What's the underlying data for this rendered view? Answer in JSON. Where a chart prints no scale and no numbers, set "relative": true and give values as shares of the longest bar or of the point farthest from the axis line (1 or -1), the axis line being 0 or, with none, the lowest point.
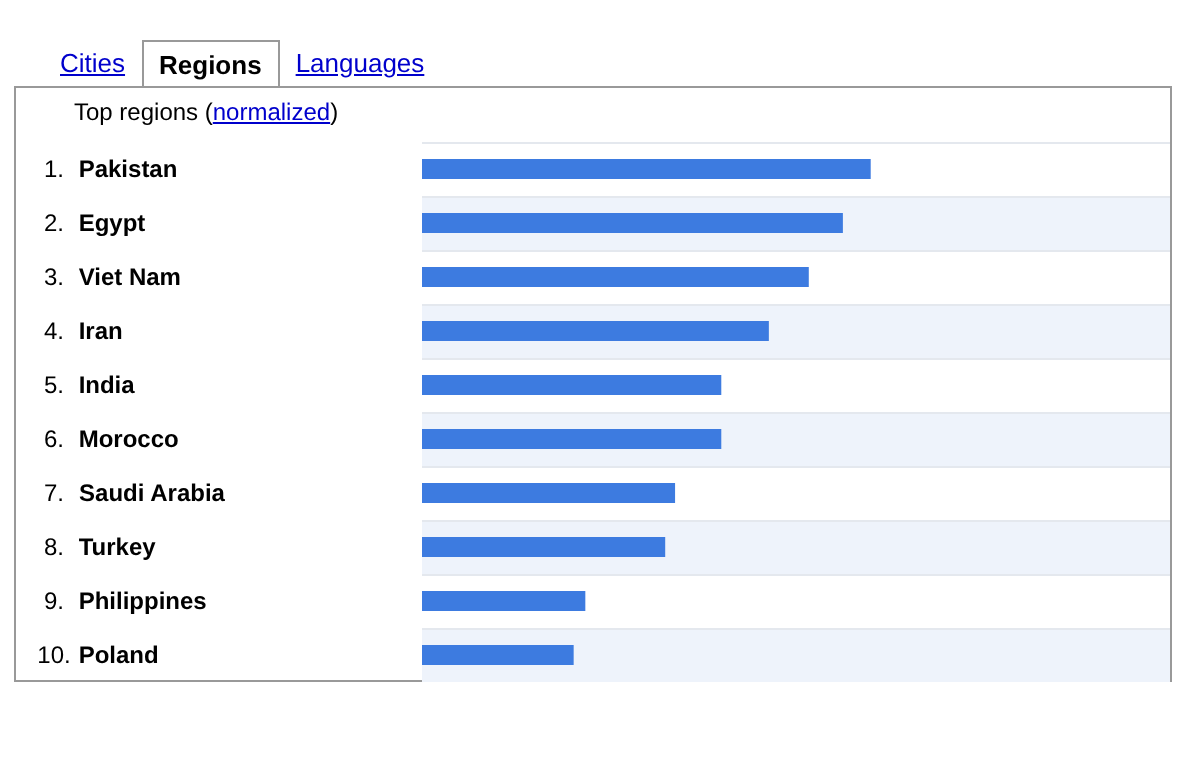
{
  "chart_data": {
    "type": "bar",
    "orientation": "horizontal",
    "relative": true,
    "title": "Top regions (normalized)",
    "annotations": [
      "Cities",
      "Regions",
      "Languages"
    ],
    "categories": [
      "1. Pakistan",
      "2. Egypt",
      "3. Viet Nam",
      "4. Iran",
      "5. India",
      "6. Morocco",
      "7. Saudi Arabia",
      "8. Turkey",
      "9. Philippines",
      "10. Poland"
    ],
    "values": [
      1,
      0.938,
      0.862,
      0.773,
      0.667,
      0.667,
      0.564,
      0.542,
      0.364,
      0.338
    ],
    "color": "#3d7be0"
  }
}
